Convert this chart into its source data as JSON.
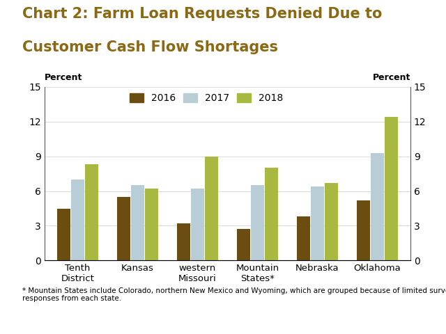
{
  "title_line1": "Chart 2: Farm Loan Requests Denied Due to",
  "title_line2": "Customer Cash Flow Shortages",
  "title_color": "#8B6914",
  "title_fontsize": 15,
  "categories": [
    "Tenth\nDistrict",
    "Kansas",
    "western\nMissouri",
    "Mountain\nStates*",
    "Nebraska",
    "Oklahoma"
  ],
  "years": [
    "2016",
    "2017",
    "2018"
  ],
  "values": {
    "2016": [
      4.5,
      5.5,
      3.2,
      2.7,
      3.8,
      5.2
    ],
    "2017": [
      7.0,
      6.5,
      6.2,
      6.5,
      6.4,
      9.3
    ],
    "2018": [
      8.3,
      6.2,
      9.0,
      8.0,
      6.7,
      12.4
    ]
  },
  "bar_colors": {
    "2016": "#6B4C11",
    "2017": "#B8CDD6",
    "2018": "#A8B840"
  },
  "ylabel_left": "Percent",
  "ylabel_right": "Percent",
  "ylim": [
    0,
    15
  ],
  "yticks": [
    0,
    3,
    6,
    9,
    12,
    15
  ],
  "footnote": "* Mountain States include Colorado, northern New Mexico and Wyoming, which are grouped because of limited survey\nresponses from each state.",
  "background_color": "#FFFFFF",
  "bar_width": 0.23
}
